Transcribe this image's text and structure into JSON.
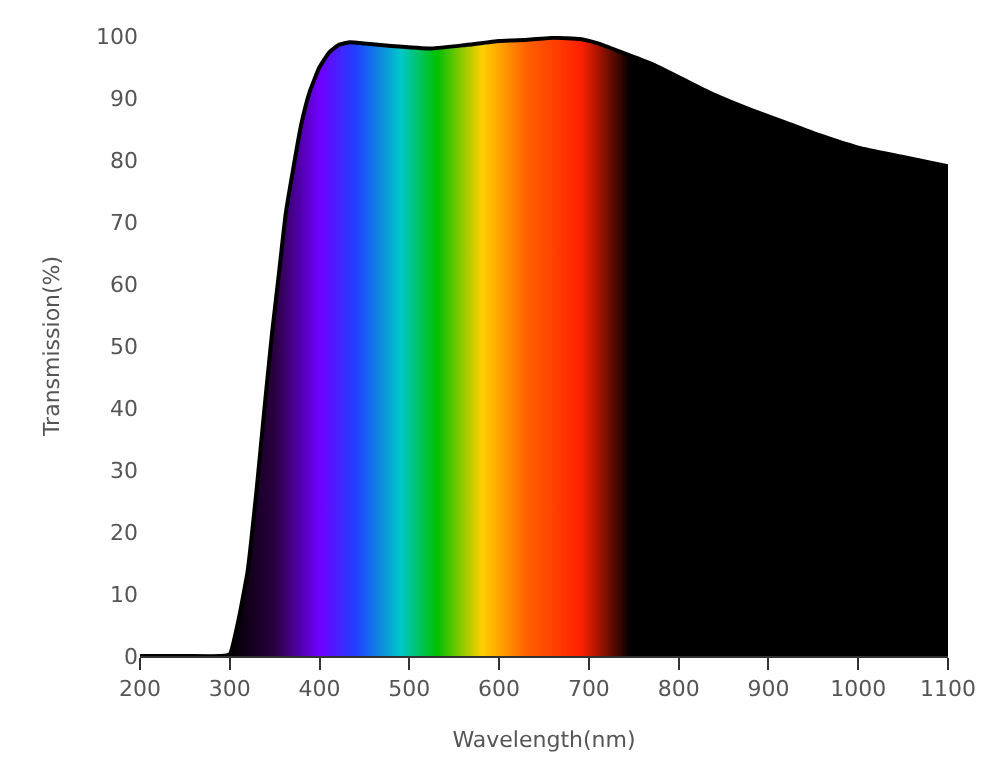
{
  "chart_data": {
    "type": "area",
    "xlabel": "Wavelength(nm)",
    "ylabel": "Transmission(%)",
    "x": [
      200,
      250,
      290,
      300,
      310,
      320,
      330,
      339,
      347,
      355,
      362,
      370,
      380,
      389,
      400,
      411,
      422,
      434,
      450,
      480,
      525,
      560,
      600,
      632,
      661,
      690,
      710,
      736,
      770,
      805,
      840,
      882,
      920,
      957,
      1000,
      1050,
      1100
    ],
    "series": [
      {
        "color": "#000000",
        "values": [
          0,
          0,
          0,
          0.3,
          6,
          13.8,
          27,
          40.5,
          52,
          62,
          71,
          78,
          86,
          91,
          95,
          97.4,
          98.6,
          99,
          98.8,
          98.4,
          98,
          98.5,
          99.2,
          99.4,
          99.7,
          99.5,
          98.8,
          97.4,
          95.5,
          93,
          90.5,
          88,
          86,
          84,
          82,
          80.5,
          79
        ]
      }
    ],
    "xlim": [
      200,
      1100
    ],
    "xticks": [
      200,
      300,
      400,
      500,
      600,
      700,
      800,
      900,
      1000,
      1100
    ],
    "ylim": [
      0,
      100
    ],
    "yticks": [
      0,
      10,
      20,
      30,
      40,
      50,
      60,
      70,
      80,
      90,
      100
    ],
    "legend": false,
    "marker": "none",
    "line_style": "solid"
  }
}
